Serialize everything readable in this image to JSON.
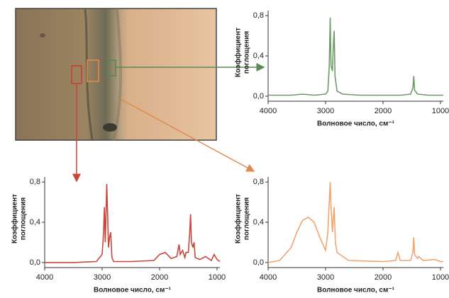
{
  "chart_data": [
    {
      "type": "line",
      "xlabel": "Волновое число, см⁻¹",
      "ylabel": [
        "Коэффициент",
        "поглощения"
      ],
      "xlim": [
        4000,
        950
      ],
      "xticks": [
        4000,
        3000,
        2000,
        1000
      ],
      "ylim": [
        -0.05,
        0.85
      ],
      "yticks": [
        {
          "value": 0.0,
          "label": "0,0"
        },
        {
          "value": 0.4,
          "label": "0,4"
        },
        {
          "value": 0.8,
          "label": "0,8"
        }
      ],
      "x": [
        4000,
        3600,
        3400,
        3200,
        3000,
        2960,
        2935,
        2920,
        2905,
        2880,
        2865,
        2850,
        2835,
        2800,
        2700,
        2400,
        2000,
        1700,
        1520,
        1480,
        1465,
        1450,
        1400,
        1200,
        1000,
        950
      ],
      "series": [
        {
          "color": "#6f9a6a",
          "values": [
            0.01,
            0.01,
            0.02,
            0.01,
            0.02,
            0.05,
            0.3,
            0.78,
            0.3,
            0.25,
            0.5,
            0.65,
            0.2,
            0.05,
            0.02,
            0.01,
            0.01,
            0.01,
            0.02,
            0.08,
            0.2,
            0.06,
            0.02,
            0.01,
            0.01,
            0.01
          ]
        }
      ]
    },
    {
      "type": "line",
      "xlabel": "Волновое число, см⁻¹",
      "ylabel": [
        "Коэффициент",
        "поглощения"
      ],
      "xlim": [
        4000,
        950
      ],
      "xticks": [
        4000,
        3000,
        2000,
        1000
      ],
      "ylim": [
        -0.05,
        0.85
      ],
      "yticks": [
        {
          "value": 0.0,
          "label": "0,0"
        },
        {
          "value": 0.4,
          "label": "0,4"
        },
        {
          "value": 0.8,
          "label": "0,8"
        }
      ],
      "x": [
        4000,
        3500,
        3100,
        3000,
        2975,
        2960,
        2945,
        2935,
        2920,
        2905,
        2890,
        2870,
        2850,
        2830,
        2800,
        2500,
        2100,
        2000,
        1900,
        1800,
        1700,
        1660,
        1640,
        1600,
        1560,
        1540,
        1500,
        1475,
        1460,
        1445,
        1420,
        1400,
        1380,
        1300,
        1200,
        1100,
        1050,
        1000,
        950
      ],
      "series": [
        {
          "color": "#c9463c",
          "values": [
            0.0,
            0.0,
            0.01,
            0.08,
            0.3,
            0.55,
            0.2,
            0.4,
            0.78,
            0.5,
            0.15,
            0.25,
            0.3,
            0.05,
            0.01,
            0.01,
            0.02,
            0.08,
            0.1,
            0.04,
            0.06,
            0.18,
            0.08,
            0.12,
            0.05,
            0.1,
            0.1,
            0.3,
            0.48,
            0.2,
            0.15,
            0.2,
            0.05,
            0.03,
            0.06,
            0.02,
            0.08,
            0.03,
            0.01
          ]
        }
      ]
    },
    {
      "type": "line",
      "xlabel": "Волновое число, см⁻¹",
      "ylabel": [
        "Коэффициент",
        "поглощения"
      ],
      "xlim": [
        4000,
        950
      ],
      "xticks": [
        4000,
        3000,
        2000,
        1000
      ],
      "ylim": [
        -0.05,
        0.85
      ],
      "yticks": [
        {
          "value": 0.0,
          "label": "0,0"
        },
        {
          "value": 0.4,
          "label": "0,4"
        },
        {
          "value": 0.8,
          "label": "0,8"
        }
      ],
      "x": [
        4000,
        3800,
        3600,
        3500,
        3400,
        3300,
        3200,
        3100,
        3000,
        2960,
        2935,
        2920,
        2905,
        2880,
        2865,
        2850,
        2830,
        2800,
        2600,
        2000,
        1780,
        1740,
        1700,
        1520,
        1480,
        1465,
        1450,
        1400,
        1380,
        1300,
        1100,
        1000,
        950
      ],
      "series": [
        {
          "color": "#f0a570",
          "values": [
            0.0,
            0.02,
            0.15,
            0.3,
            0.42,
            0.45,
            0.4,
            0.25,
            0.12,
            0.3,
            0.6,
            0.8,
            0.55,
            0.3,
            0.45,
            0.55,
            0.2,
            0.1,
            0.02,
            0.01,
            0.02,
            0.1,
            0.02,
            0.02,
            0.1,
            0.25,
            0.08,
            0.04,
            0.06,
            0.02,
            0.03,
            0.01,
            0.01
          ]
        }
      ]
    }
  ]
}
